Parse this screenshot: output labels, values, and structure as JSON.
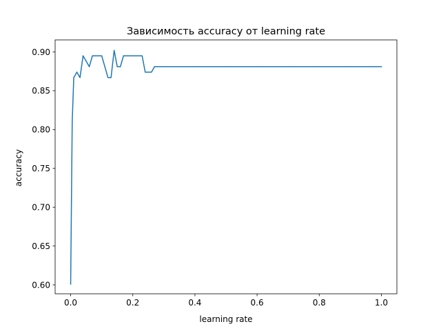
{
  "chart_data": {
    "type": "line",
    "title": "Зависимость accuracy от learning rate",
    "xlabel": "learning rate",
    "ylabel": "accuracy",
    "xlim": [
      -0.05,
      1.05
    ],
    "ylim": [
      0.5885,
      0.9155
    ],
    "xticks": [
      0.0,
      0.2,
      0.4,
      0.6,
      0.8,
      1.0
    ],
    "xtick_labels": [
      "0.0",
      "0.2",
      "0.4",
      "0.6",
      "0.8",
      "1.0"
    ],
    "yticks": [
      0.6,
      0.65,
      0.7,
      0.75,
      0.8,
      0.85,
      0.9
    ],
    "ytick_labels": [
      "0.60",
      "0.65",
      "0.70",
      "0.75",
      "0.80",
      "0.85",
      "0.90"
    ],
    "grid": false,
    "legend": false,
    "line_color": "#1f77b4",
    "series": [
      {
        "x": [
          0.0,
          0.005,
          0.01,
          0.02,
          0.03,
          0.04,
          0.05,
          0.06,
          0.07,
          0.08,
          0.09,
          0.1,
          0.11,
          0.12,
          0.13,
          0.14,
          0.15,
          0.16,
          0.17,
          0.18,
          0.19,
          0.2,
          0.21,
          0.22,
          0.23,
          0.24,
          0.25,
          0.26,
          0.27,
          0.28,
          0.3,
          0.4,
          0.5,
          0.6,
          0.7,
          0.8,
          0.9,
          1.0
        ],
        "y": [
          0.601,
          0.81,
          0.867,
          0.874,
          0.867,
          0.895,
          0.888,
          0.881,
          0.895,
          0.895,
          0.895,
          0.895,
          0.881,
          0.867,
          0.867,
          0.902,
          0.881,
          0.881,
          0.895,
          0.895,
          0.895,
          0.895,
          0.895,
          0.895,
          0.895,
          0.874,
          0.874,
          0.874,
          0.881,
          0.881,
          0.881,
          0.881,
          0.881,
          0.881,
          0.881,
          0.881,
          0.881,
          0.881
        ]
      }
    ]
  }
}
